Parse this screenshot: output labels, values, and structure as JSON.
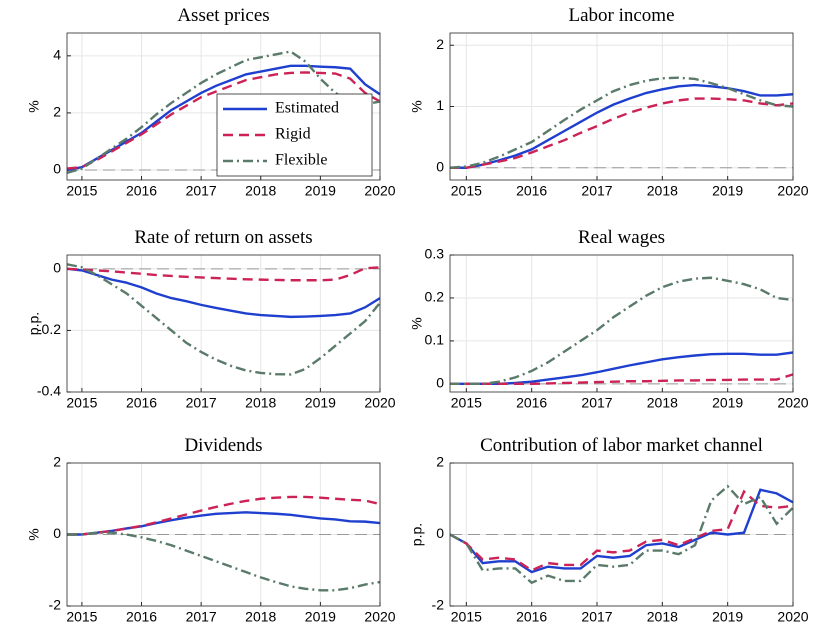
{
  "chart_data": [
    {
      "type": "line",
      "title": "Asset prices",
      "ylabel": "%",
      "x": [
        2014.75,
        2015,
        2015.25,
        2015.5,
        2015.75,
        2016,
        2016.25,
        2016.5,
        2016.75,
        2017,
        2017.25,
        2017.5,
        2017.75,
        2018,
        2018.25,
        2018.5,
        2018.75,
        2019,
        2019.25,
        2019.5,
        2019.75,
        2020
      ],
      "xlim": [
        2014.75,
        2020
      ],
      "xticks": [
        2015,
        2016,
        2017,
        2018,
        2019,
        2020
      ],
      "ylim": [
        -0.35,
        4.8
      ],
      "yticks": [
        0,
        2,
        4
      ],
      "grid": true,
      "zero_line": true,
      "legend": "lower right",
      "series": [
        {
          "name": "Estimated",
          "color": "#1f3fcf",
          "dash": "solid",
          "values": [
            0,
            0.1,
            0.4,
            0.7,
            1.0,
            1.3,
            1.7,
            2.1,
            2.4,
            2.7,
            2.95,
            3.15,
            3.35,
            3.45,
            3.55,
            3.65,
            3.65,
            3.62,
            3.6,
            3.55,
            3.0,
            2.65
          ]
        },
        {
          "name": "Rigid",
          "color": "#cc2255",
          "dash": "dashed",
          "values": [
            0.05,
            0.1,
            0.35,
            0.65,
            0.95,
            1.25,
            1.6,
            1.95,
            2.25,
            2.55,
            2.75,
            2.95,
            3.15,
            3.25,
            3.35,
            3.4,
            3.42,
            3.4,
            3.38,
            3.2,
            2.7,
            2.4
          ]
        },
        {
          "name": "Flexible",
          "color": "#5a7a6a",
          "dash": "dashdot",
          "values": [
            -0.1,
            0.05,
            0.4,
            0.75,
            1.1,
            1.5,
            1.95,
            2.35,
            2.7,
            3.05,
            3.35,
            3.6,
            3.85,
            3.95,
            4.05,
            4.15,
            3.8,
            3.2,
            2.7,
            2.4,
            2.3,
            2.4
          ]
        }
      ]
    },
    {
      "type": "line",
      "title": "Labor income",
      "ylabel": "%",
      "x": [
        2014.75,
        2015,
        2015.25,
        2015.5,
        2015.75,
        2016,
        2016.25,
        2016.5,
        2016.75,
        2017,
        2017.25,
        2017.5,
        2017.75,
        2018,
        2018.25,
        2018.5,
        2018.75,
        2019,
        2019.25,
        2019.5,
        2019.75,
        2020
      ],
      "xlim": [
        2014.75,
        2020
      ],
      "xticks": [
        2015,
        2016,
        2017,
        2018,
        2019,
        2020
      ],
      "ylim": [
        -0.2,
        2.2
      ],
      "yticks": [
        0,
        1,
        2
      ],
      "grid": true,
      "zero_line": true,
      "series": [
        {
          "color": "#1f3fcf",
          "dash": "solid",
          "values": [
            0,
            0,
            0.05,
            0.12,
            0.2,
            0.3,
            0.45,
            0.6,
            0.75,
            0.9,
            1.03,
            1.13,
            1.22,
            1.28,
            1.33,
            1.35,
            1.33,
            1.3,
            1.25,
            1.18,
            1.18,
            1.2
          ]
        },
        {
          "color": "#cc2255",
          "dash": "dashed",
          "values": [
            0,
            0,
            0.05,
            0.1,
            0.16,
            0.25,
            0.35,
            0.45,
            0.57,
            0.68,
            0.8,
            0.9,
            0.98,
            1.05,
            1.1,
            1.13,
            1.13,
            1.12,
            1.1,
            1.05,
            1.02,
            1.05
          ]
        },
        {
          "color": "#5a7a6a",
          "dash": "dashdot",
          "values": [
            0,
            0.02,
            0.08,
            0.18,
            0.3,
            0.42,
            0.6,
            0.78,
            0.95,
            1.1,
            1.25,
            1.35,
            1.42,
            1.46,
            1.47,
            1.45,
            1.38,
            1.3,
            1.2,
            1.1,
            1.02,
            1.0
          ]
        }
      ]
    },
    {
      "type": "line",
      "title": "Rate of return on assets",
      "ylabel": "p.p.",
      "x": [
        2014.75,
        2015,
        2015.25,
        2015.5,
        2015.75,
        2016,
        2016.25,
        2016.5,
        2016.75,
        2017,
        2017.25,
        2017.5,
        2017.75,
        2018,
        2018.25,
        2018.5,
        2018.75,
        2019,
        2019.25,
        2019.5,
        2019.75,
        2020
      ],
      "xlim": [
        2014.75,
        2020
      ],
      "xticks": [
        2015,
        2016,
        2017,
        2018,
        2019,
        2020
      ],
      "ylim": [
        -0.4,
        0.045
      ],
      "yticks": [
        -0.4,
        -0.2,
        0
      ],
      "grid": true,
      "zero_line": true,
      "series": [
        {
          "color": "#1f3fcf",
          "dash": "solid",
          "values": [
            0,
            -0.005,
            -0.02,
            -0.035,
            -0.045,
            -0.06,
            -0.08,
            -0.095,
            -0.105,
            -0.117,
            -0.127,
            -0.136,
            -0.145,
            -0.15,
            -0.153,
            -0.156,
            -0.155,
            -0.153,
            -0.15,
            -0.145,
            -0.125,
            -0.095
          ]
        },
        {
          "color": "#cc2255",
          "dash": "dashed",
          "values": [
            0,
            -0.002,
            -0.005,
            -0.008,
            -0.012,
            -0.016,
            -0.02,
            -0.023,
            -0.026,
            -0.028,
            -0.03,
            -0.032,
            -0.034,
            -0.035,
            -0.036,
            -0.037,
            -0.037,
            -0.037,
            -0.035,
            -0.02,
            0.002,
            0.005
          ]
        },
        {
          "color": "#5a7a6a",
          "dash": "dashdot",
          "values": [
            0.015,
            0.005,
            -0.02,
            -0.05,
            -0.08,
            -0.12,
            -0.16,
            -0.2,
            -0.24,
            -0.27,
            -0.295,
            -0.315,
            -0.33,
            -0.338,
            -0.342,
            -0.343,
            -0.325,
            -0.29,
            -0.25,
            -0.21,
            -0.17,
            -0.11
          ]
        }
      ]
    },
    {
      "type": "line",
      "title": "Real wages",
      "ylabel": "%",
      "x": [
        2014.75,
        2015,
        2015.25,
        2015.5,
        2015.75,
        2016,
        2016.25,
        2016.5,
        2016.75,
        2017,
        2017.25,
        2017.5,
        2017.75,
        2018,
        2018.25,
        2018.5,
        2018.75,
        2019,
        2019.25,
        2019.5,
        2019.75,
        2020
      ],
      "xlim": [
        2014.75,
        2020
      ],
      "xticks": [
        2015,
        2016,
        2017,
        2018,
        2019,
        2020
      ],
      "ylim": [
        -0.019,
        0.3
      ],
      "yticks": [
        0,
        0.1,
        0.2,
        0.3
      ],
      "grid": true,
      "zero_line": true,
      "series": [
        {
          "color": "#1f3fcf",
          "dash": "solid",
          "values": [
            0,
            0,
            0,
            0,
            0.002,
            0.005,
            0.01,
            0.015,
            0.02,
            0.027,
            0.035,
            0.043,
            0.05,
            0.057,
            0.062,
            0.066,
            0.069,
            0.07,
            0.07,
            0.068,
            0.068,
            0.073
          ]
        },
        {
          "color": "#cc2255",
          "dash": "dashed",
          "values": [
            0,
            0,
            0,
            0,
            0,
            0,
            0.001,
            0.002,
            0.003,
            0.004,
            0.005,
            0.006,
            0.006,
            0.007,
            0.008,
            0.008,
            0.009,
            0.009,
            0.01,
            0.01,
            0.01,
            0.022
          ]
        },
        {
          "color": "#5a7a6a",
          "dash": "dashdot",
          "values": [
            0,
            0,
            0,
            0.005,
            0.015,
            0.03,
            0.05,
            0.075,
            0.1,
            0.125,
            0.155,
            0.18,
            0.205,
            0.225,
            0.238,
            0.245,
            0.247,
            0.24,
            0.232,
            0.22,
            0.2,
            0.195
          ]
        }
      ]
    },
    {
      "type": "line",
      "title": "Dividends",
      "ylabel": "%",
      "x": [
        2014.75,
        2015,
        2015.25,
        2015.5,
        2015.75,
        2016,
        2016.25,
        2016.5,
        2016.75,
        2017,
        2017.25,
        2017.5,
        2017.75,
        2018,
        2018.25,
        2018.5,
        2018.75,
        2019,
        2019.25,
        2019.5,
        2019.75,
        2020
      ],
      "xlim": [
        2014.75,
        2020
      ],
      "xticks": [
        2015,
        2016,
        2017,
        2018,
        2019,
        2020
      ],
      "ylim": [
        -2,
        2
      ],
      "yticks": [
        -2,
        0,
        2
      ],
      "grid": true,
      "zero_line": true,
      "series": [
        {
          "color": "#1f3fcf",
          "dash": "solid",
          "values": [
            0,
            0,
            0.05,
            0.1,
            0.17,
            0.23,
            0.32,
            0.4,
            0.47,
            0.53,
            0.58,
            0.6,
            0.62,
            0.6,
            0.58,
            0.55,
            0.5,
            0.45,
            0.42,
            0.37,
            0.36,
            0.32
          ]
        },
        {
          "color": "#cc2255",
          "dash": "dashed",
          "values": [
            0,
            0,
            0.05,
            0.1,
            0.17,
            0.24,
            0.34,
            0.45,
            0.56,
            0.67,
            0.77,
            0.86,
            0.94,
            1.0,
            1.03,
            1.05,
            1.05,
            1.03,
            1.0,
            0.97,
            0.95,
            0.85
          ]
        },
        {
          "color": "#5a7a6a",
          "dash": "dashdot",
          "values": [
            0,
            0,
            0.05,
            0.05,
            0,
            -0.08,
            -0.18,
            -0.3,
            -0.45,
            -0.6,
            -0.75,
            -0.9,
            -1.05,
            -1.2,
            -1.33,
            -1.45,
            -1.52,
            -1.56,
            -1.56,
            -1.5,
            -1.4,
            -1.33
          ]
        }
      ]
    },
    {
      "type": "line",
      "title": "Contribution of labor market channel",
      "ylabel": "p.p.",
      "x": [
        2014.75,
        2015,
        2015.25,
        2015.5,
        2015.75,
        2016,
        2016.25,
        2016.5,
        2016.75,
        2017,
        2017.25,
        2017.5,
        2017.75,
        2018,
        2018.25,
        2018.5,
        2018.75,
        2019,
        2019.25,
        2019.5,
        2019.75,
        2020
      ],
      "xlim": [
        2014.75,
        2020
      ],
      "xticks": [
        2015,
        2016,
        2017,
        2018,
        2019,
        2020
      ],
      "ylim": [
        -2,
        2
      ],
      "yticks": [
        -2,
        0,
        2
      ],
      "grid": true,
      "zero_line": true,
      "series": [
        {
          "color": "#1f3fcf",
          "dash": "solid",
          "values": [
            0,
            -0.25,
            -0.8,
            -0.75,
            -0.75,
            -1.05,
            -0.9,
            -0.95,
            -0.95,
            -0.6,
            -0.65,
            -0.6,
            -0.3,
            -0.25,
            -0.35,
            -0.15,
            0.05,
            0,
            0.05,
            1.25,
            1.15,
            0.9
          ]
        },
        {
          "color": "#cc2255",
          "dash": "dashed",
          "values": [
            0,
            -0.25,
            -0.7,
            -0.65,
            -0.7,
            -1.0,
            -0.8,
            -0.85,
            -0.85,
            -0.45,
            -0.5,
            -0.45,
            -0.2,
            -0.15,
            -0.3,
            -0.1,
            0.1,
            0.15,
            1.2,
            0.8,
            0.75,
            0.8
          ]
        },
        {
          "color": "#5a7a6a",
          "dash": "dashdot",
          "values": [
            0,
            -0.25,
            -1.0,
            -0.95,
            -0.95,
            -1.35,
            -1.15,
            -1.3,
            -1.3,
            -0.85,
            -0.9,
            -0.85,
            -0.45,
            -0.45,
            -0.55,
            -0.3,
            0.95,
            1.35,
            0.85,
            1.05,
            0.3,
            0.75
          ]
        }
      ]
    }
  ]
}
